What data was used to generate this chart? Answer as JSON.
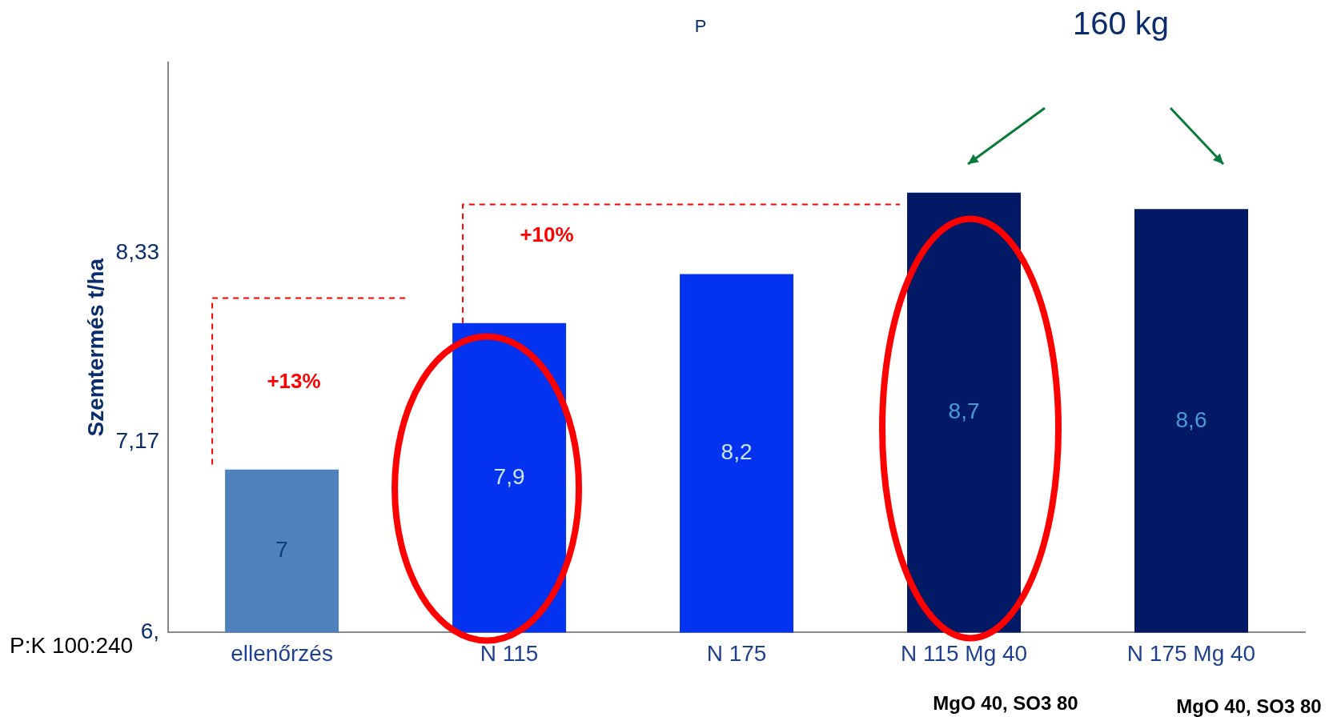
{
  "chart_data": {
    "type": "bar",
    "title": "P",
    "ylabel": "Szemtermés t/ha",
    "categories": [
      "ellenőrzés",
      "N 115",
      "N 175",
      "N 115 Mg 40",
      "N 175 Mg 40"
    ],
    "values": [
      7,
      7.9,
      8.2,
      8.7,
      8.6
    ],
    "colors": [
      "#4f81bd",
      "#0433ef",
      "#0433ef",
      "#021a66",
      "#021a66"
    ],
    "value_labels": [
      "7",
      "7,9",
      "8,2",
      "8,7",
      "8,6"
    ],
    "ylim": [
      6,
      9.5
    ],
    "yticks": [
      {
        "value": 6,
        "label": "6,"
      },
      {
        "value": 7.17,
        "label": "7,17"
      },
      {
        "value": 8.33,
        "label": "8,33"
      }
    ],
    "grid": false,
    "legend": false,
    "annotations": [
      "160 kg",
      "+13%",
      "+10%",
      "P:K 100:240",
      "MgO 40, SO3 80",
      "MgO 40, SO3 80"
    ]
  }
}
